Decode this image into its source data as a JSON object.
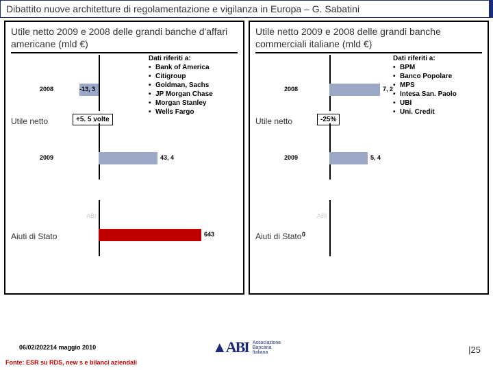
{
  "header": {
    "title": "Dibattito nuove architetture di regolamentazione e vigilanza in Europa – G. Sabatini"
  },
  "left": {
    "title": "Utile netto 2009 e 2008 delle grandi banche d'affari americane (mld €)",
    "legend_title": "Dati riferiti a:",
    "legend": [
      "Bank of America",
      "Citigroup",
      "Goldman, Sachs",
      "JP Morgan Chase",
      "Morgan Stanley",
      "Wells Fargo"
    ],
    "section1": "Utile netto",
    "section2": "Aiuti di Stato",
    "change": "+5. 5 volte",
    "rows": [
      {
        "label": "2008",
        "value": "-13, 3",
        "bar_color": "#9aa7c7",
        "dir": "neg",
        "len": 28
      },
      {
        "label": "2009",
        "value": "43, 4",
        "bar_color": "#9aa7c7",
        "dir": "pos",
        "len": 86
      },
      {
        "label": "",
        "value": "643",
        "bar_color": "#c00000",
        "dir": "pos",
        "len": 150
      }
    ]
  },
  "right": {
    "title": "Utile netto 2009 e 2008 delle grandi banche commerciali italiane (mld €)",
    "legend_title": "Dati riferiti a:",
    "legend": [
      "BPM",
      "Banco Popolare",
      "MPS",
      "Intesa San. Paolo",
      "UBI",
      "Uni. Credit"
    ],
    "section1": "Utile netto",
    "section2": "Aiuti di Stato",
    "change": "-25%",
    "rows": [
      {
        "label": "2008",
        "value": "7, 2",
        "bar_color": "#9aa7c7",
        "dir": "pos",
        "len": 74
      },
      {
        "label": "2009",
        "value": "5, 4",
        "bar_color": "#9aa7c7",
        "dir": "pos",
        "len": 56
      },
      {
        "label": "",
        "value": "0",
        "bar_color": "#c00000",
        "dir": "pos",
        "len": 0
      }
    ]
  },
  "footer": {
    "date": "06/02/202214 maggio 2010",
    "source": "Fonte: ESR su RDS, new s e bilanci aziendali",
    "logo_text1": "Associazione",
    "logo_text2": "Bancaria",
    "logo_text3": "Italiana",
    "page": "|25"
  },
  "colors": {
    "accent": "#1a2b7a",
    "red": "#c00000",
    "bar_blue": "#9aa7c7"
  }
}
